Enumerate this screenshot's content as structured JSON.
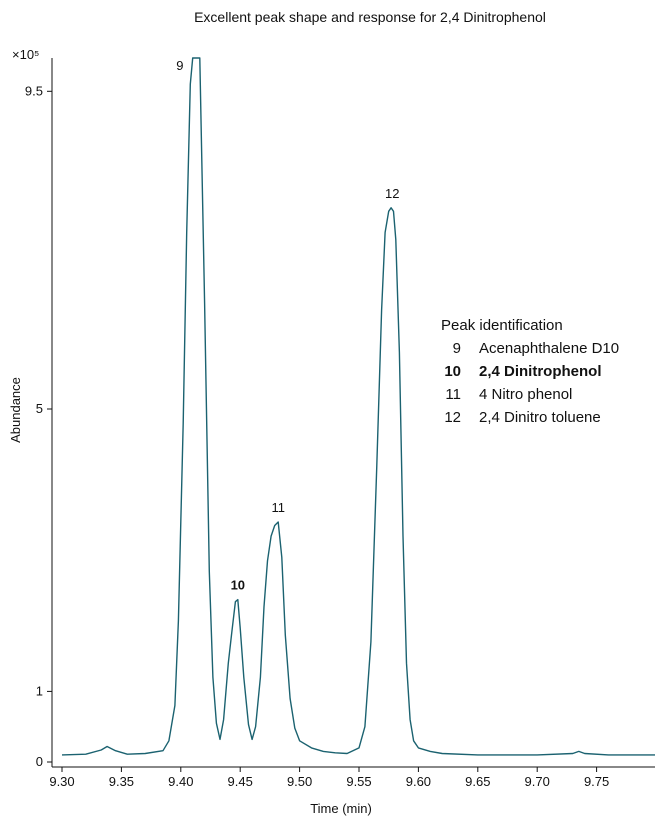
{
  "chart_data": {
    "type": "line",
    "title": "Excellent peak shape and response for 2,4 Dinitrophenol",
    "xlabel": "Time (min)",
    "ylabel": "Abundance",
    "y_multiplier_label": "×10⁵",
    "xlim": [
      9.3,
      9.8
    ],
    "ylim": [
      0,
      10.0
    ],
    "x_ticks": [
      9.3,
      9.35,
      9.4,
      9.45,
      9.5,
      9.55,
      9.6,
      9.65,
      9.7,
      9.75
    ],
    "x_tick_labels": [
      "9.30",
      "9.35",
      "9.40",
      "9.45",
      "9.50",
      "9.55",
      "9.60",
      "9.65",
      "9.70",
      "9.75"
    ],
    "y_ticks": [
      0,
      1,
      5,
      9.5
    ],
    "y_tick_labels": [
      "0",
      "1",
      "5",
      "9.5"
    ],
    "grid": false,
    "series": [
      {
        "color": "#1b6270",
        "x": [
          9.3,
          9.32,
          9.333,
          9.338,
          9.345,
          9.355,
          9.37,
          9.385,
          9.39,
          9.395,
          9.398,
          9.402,
          9.405,
          9.408,
          9.41,
          9.412,
          9.414,
          9.416,
          9.42,
          9.424,
          9.427,
          9.43,
          9.433,
          9.436,
          9.44,
          9.443,
          9.446,
          9.448,
          9.45,
          9.453,
          9.457,
          9.46,
          9.463,
          9.467,
          9.47,
          9.473,
          9.476,
          9.479,
          9.482,
          9.485,
          9.488,
          9.492,
          9.496,
          9.5,
          9.51,
          9.52,
          9.53,
          9.54,
          9.55,
          9.555,
          9.56,
          9.565,
          9.569,
          9.572,
          9.575,
          9.577,
          9.579,
          9.581,
          9.584,
          9.587,
          9.59,
          9.593,
          9.596,
          9.6,
          9.61,
          9.62,
          9.65,
          9.7,
          9.73,
          9.735,
          9.74,
          9.76,
          9.78,
          9.8
        ],
        "y": [
          0.1,
          0.11,
          0.17,
          0.22,
          0.16,
          0.11,
          0.12,
          0.16,
          0.3,
          0.8,
          2.0,
          4.8,
          7.5,
          9.6,
          10.0,
          10.0,
          10.0,
          10.0,
          6.5,
          2.7,
          1.2,
          0.55,
          0.32,
          0.6,
          1.4,
          1.85,
          2.27,
          2.3,
          1.9,
          1.2,
          0.53,
          0.32,
          0.5,
          1.2,
          2.2,
          2.85,
          3.2,
          3.35,
          3.4,
          2.9,
          1.8,
          0.9,
          0.48,
          0.3,
          0.2,
          0.15,
          0.13,
          0.12,
          0.2,
          0.5,
          1.7,
          4.2,
          6.4,
          7.5,
          7.8,
          7.85,
          7.8,
          7.4,
          5.8,
          3.2,
          1.4,
          0.6,
          0.3,
          0.2,
          0.15,
          0.12,
          0.1,
          0.1,
          0.12,
          0.15,
          0.12,
          0.1,
          0.1,
          0.1
        ]
      }
    ],
    "peak_labels": [
      {
        "text": "9",
        "x": 9.409,
        "y": 10.0,
        "color": "#111111",
        "bold": false
      },
      {
        "text": "10",
        "x": 9.448,
        "y": 2.3,
        "color": "#1aa7c9",
        "bold": true
      },
      {
        "text": "11",
        "x": 9.482,
        "y": 3.4,
        "color": "#111111",
        "bold": false
      },
      {
        "text": "12",
        "x": 9.578,
        "y": 7.85,
        "color": "#111111",
        "bold": false
      }
    ],
    "legend": {
      "title": "Peak identification",
      "placement": "right",
      "entries": [
        {
          "number": "9",
          "name": "Acenaphthalene D10",
          "color": "#111111",
          "bold": false
        },
        {
          "number": "10",
          "name": "2,4 Dinitrophenol",
          "color": "#1aa7c9",
          "bold": true
        },
        {
          "number": "11",
          "name": "4 Nitro phenol",
          "color": "#111111",
          "bold": false
        },
        {
          "number": "12",
          "name": "2,4 Dinitro toluene",
          "color": "#111111",
          "bold": false
        }
      ]
    }
  }
}
